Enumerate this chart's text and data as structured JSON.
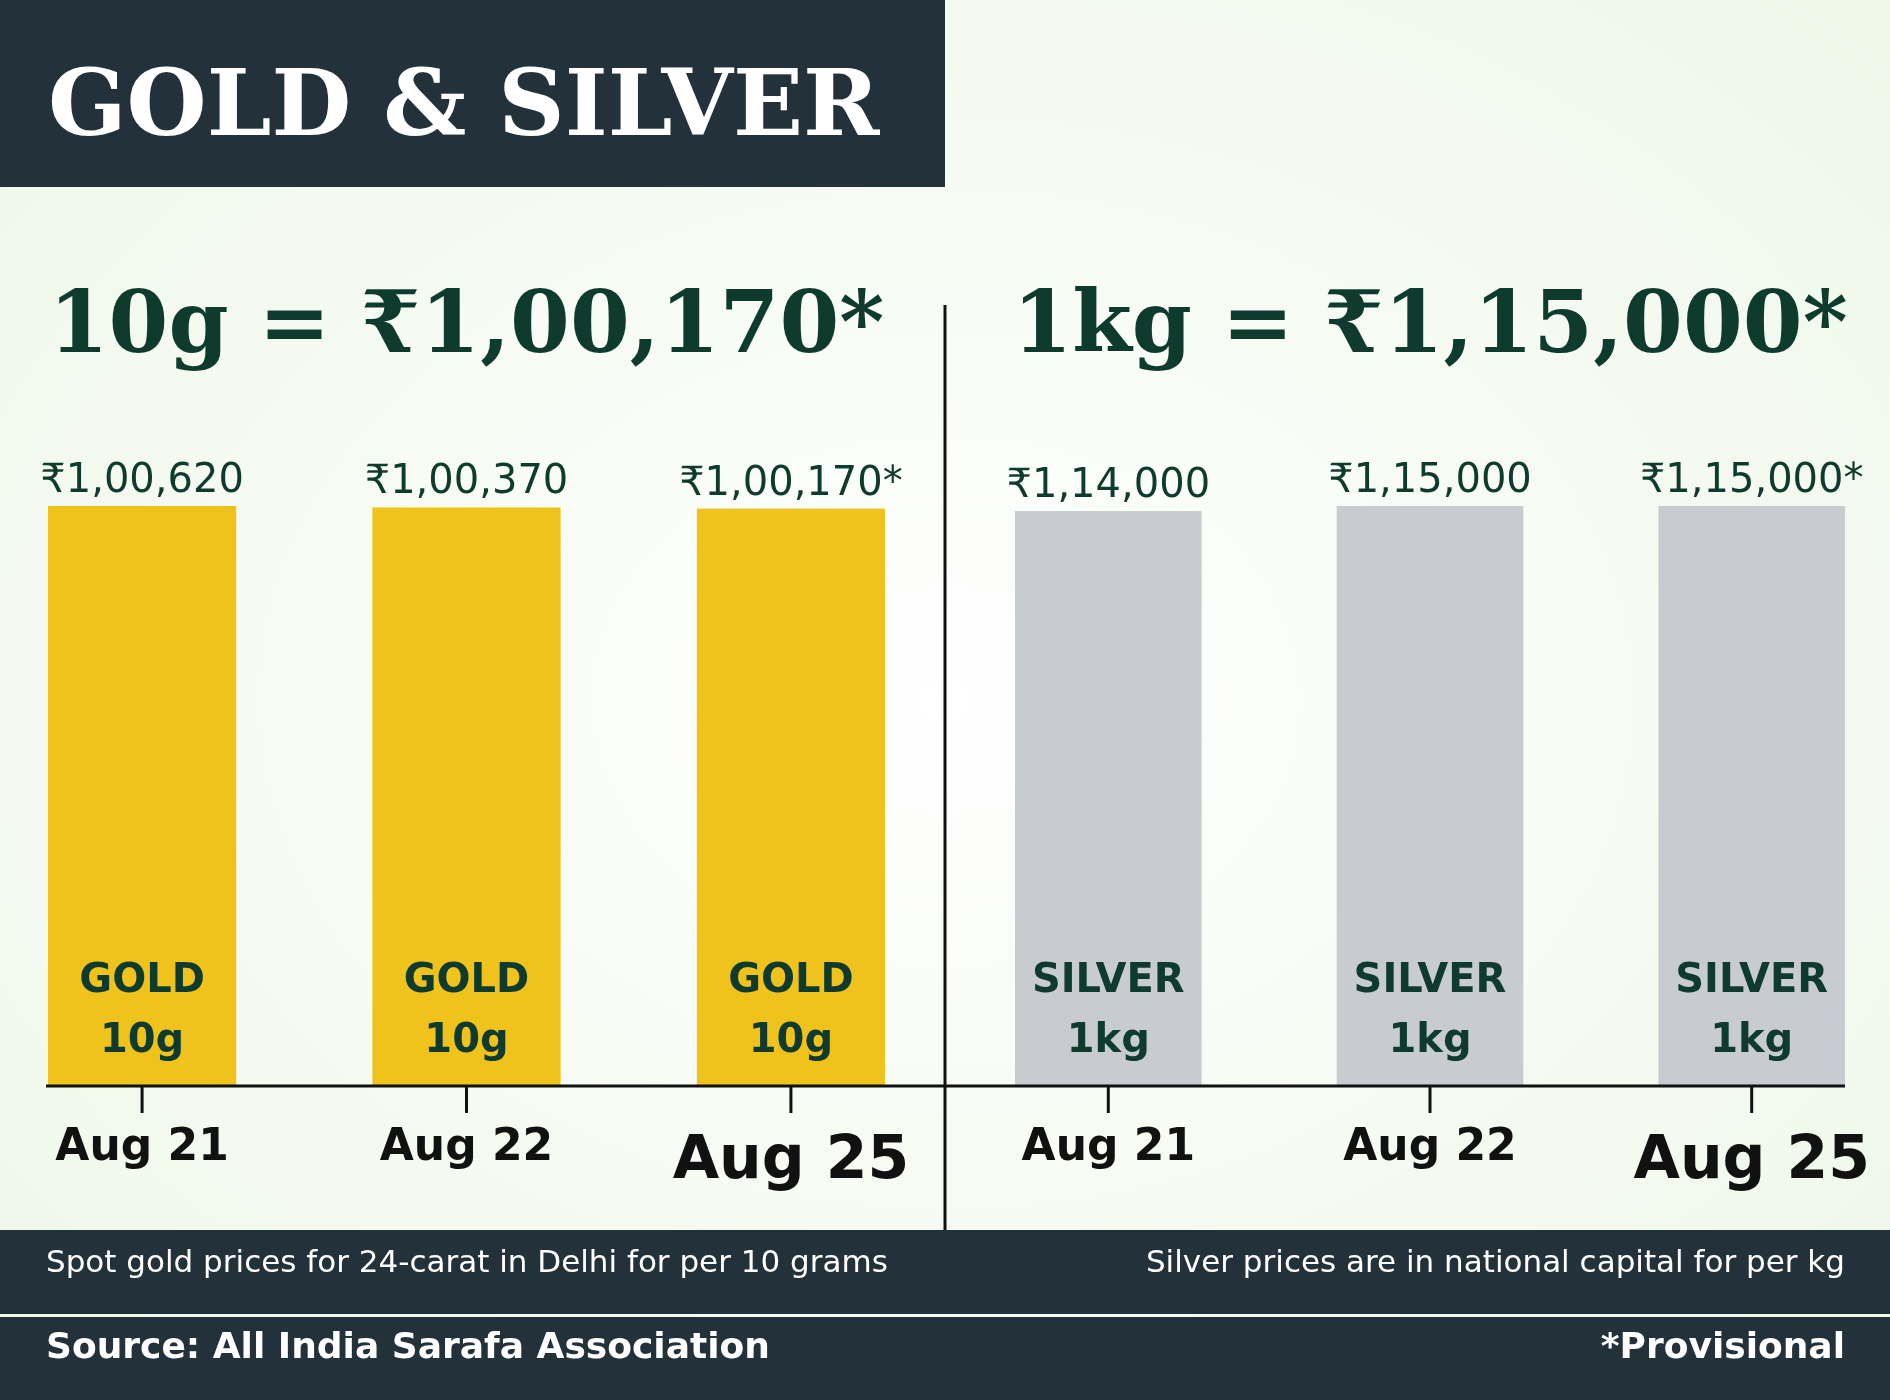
{
  "chart_data": [
    {
      "type": "bar",
      "title": "GOLD & SILVER",
      "subtitle": "10g = ₹1,00,170*",
      "categories": [
        "Aug 21",
        "Aug 22",
        "Aug 25"
      ],
      "values": [
        100620,
        100370,
        100170
      ],
      "value_labels": [
        "₹1,00,620",
        "₹1,00,370",
        "₹1,00,170*"
      ],
      "color": "#efc21c",
      "tick_labels": "x",
      "annotations": [
        "GOLD",
        "10g",
        "GOLD",
        "10g",
        "GOLD",
        "10g",
        "Spot gold prices for 24-carat in Delhi for per 10 grams",
        "Source: All India Sarafa Association"
      ]
    },
    {
      "type": "bar",
      "subtitle": "1kg = ₹1,15,000*",
      "categories": [
        "Aug 21",
        "Aug 22",
        "Aug 25"
      ],
      "values": [
        114000,
        115000,
        115000
      ],
      "value_labels": [
        "₹1,14,000",
        "₹1,15,000",
        "₹1,15,000*"
      ],
      "color": "#c8cbd0",
      "tick_labels": "x",
      "annotations": [
        "SILVER",
        "1kg",
        "SILVER",
        "1kg",
        "SILVER",
        "1kg",
        "Silver prices are in national capital for per kg",
        "*Provisional"
      ]
    }
  ]
}
